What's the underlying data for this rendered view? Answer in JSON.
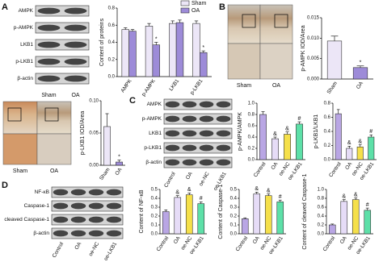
{
  "panel_labels": [
    "A",
    "B",
    "C",
    "D"
  ],
  "blots": [
    {
      "rows": [
        "AMPK",
        "p-AMPK",
        "LKB1",
        "p-LKB1",
        "β-actin"
      ],
      "columns": [
        "Sham",
        "OA"
      ]
    },
    {
      "rows": [
        "AMPK",
        "p-AMPK",
        "LKB1",
        "p-LKB1",
        "β-actin"
      ],
      "columns": [
        "Control",
        "OA",
        "oe-NC",
        "oe-LKB1"
      ]
    },
    {
      "rows": [
        "NF-κB",
        "Caspase-1",
        "cleaved Caspase-1",
        "β-actin"
      ],
      "columns": [
        "Control",
        "OA",
        "oe-NC",
        "oe-LKB1"
      ]
    }
  ],
  "images": [
    {
      "columns": [
        "Sham",
        "OA"
      ]
    },
    {
      "columns": [
        "Sham",
        "OA"
      ]
    }
  ],
  "chart_data": [
    {
      "type": "bar",
      "ylabel": "Content of proteins",
      "categories": [
        "AMPK",
        "p-AMPK",
        "LKB1",
        "p-LKB1"
      ],
      "series": [
        {
          "name": "Sham",
          "color": "#ece6f7",
          "values": [
            0.55,
            0.59,
            0.62,
            0.62
          ],
          "errors": [
            0.02,
            0.03,
            0.03,
            0.03
          ]
        },
        {
          "name": "OA",
          "color": "#9d8bd8",
          "values": [
            0.53,
            0.37,
            0.63,
            0.28
          ],
          "errors": [
            0.02,
            0.03,
            0.03,
            0.02
          ],
          "markers": [
            null,
            "*",
            null,
            "*"
          ]
        }
      ],
      "ylim": [
        0,
        0.8
      ],
      "yticks": [
        {
          "value": 0,
          "label": "0.0"
        },
        {
          "value": 0.2,
          "label": "0.2"
        },
        {
          "value": 0.4,
          "label": "0.4"
        },
        {
          "value": 0.6,
          "label": "0.6"
        },
        {
          "value": 0.8,
          "label": "0.8"
        }
      ],
      "legend": "upper right"
    },
    {
      "type": "bar",
      "ylabel": "p-AMPK IOD/Area",
      "categories": [
        "Sham",
        "OA"
      ],
      "colors": [
        "#ece6f7",
        "#9d8bd8"
      ],
      "values": [
        0.0093,
        0.0028
      ],
      "errors": [
        0.0012,
        0.0004
      ],
      "markers": [
        null,
        "*"
      ],
      "ylim": [
        0,
        0.015
      ],
      "yticks": [
        {
          "value": 0,
          "label": "0.000"
        },
        {
          "value": 0.005,
          "label": "0.005"
        },
        {
          "value": 0.01,
          "label": "0.010"
        },
        {
          "value": 0.015,
          "label": "0.015"
        }
      ]
    },
    {
      "type": "bar",
      "ylabel": "p-LKB1 IOD/Area",
      "categories": [
        "Sham",
        "OA"
      ],
      "colors": [
        "#ece6f7",
        "#9d8bd8"
      ],
      "values": [
        0.06,
        0.005
      ],
      "errors": [
        0.02,
        0.003
      ],
      "markers": [
        null,
        "*"
      ],
      "ylim": [
        0,
        0.1
      ],
      "yticks": [
        {
          "value": 0,
          "label": "0.00"
        },
        0.05,
        {
          "value": 0.1,
          "label": "0.10"
        }
      ]
    },
    {
      "type": "bar",
      "ylabel": "p-AMPK/AMPK",
      "categories": [
        "Control",
        "OA",
        "oe-NC",
        "oe-LKB1"
      ],
      "colors": [
        "#b9a6e4",
        "#e6dcf7",
        "#f5e04a",
        "#5de0a8"
      ],
      "values": [
        0.8,
        0.37,
        0.45,
        0.63
      ],
      "errors": [
        0.05,
        0.03,
        0.04,
        0.04
      ],
      "markers": [
        null,
        "&",
        "&",
        "#"
      ],
      "ylim": [
        0,
        1
      ],
      "yticks": [
        {
          "value": 0,
          "label": "0.0"
        },
        {
          "value": 0.2,
          "label": "0.2"
        },
        {
          "value": 0.4,
          "label": "0.4"
        },
        {
          "value": 0.6,
          "label": "0.6"
        },
        {
          "value": 0.8,
          "label": "0.8"
        },
        {
          "value": 1,
          "label": "1.0"
        }
      ]
    },
    {
      "type": "bar",
      "ylabel": "p-LKB1/LKB1",
      "categories": [
        "Control",
        "OA",
        "oe-NC",
        "oe-LKB1"
      ],
      "colors": [
        "#b9a6e4",
        "#e6dcf7",
        "#f5e04a",
        "#5de0a8"
      ],
      "values": [
        0.65,
        0.16,
        0.18,
        0.32
      ],
      "errors": [
        0.06,
        0.03,
        0.03,
        0.03
      ],
      "markers": [
        null,
        "&",
        "&",
        "#"
      ],
      "ylim": [
        0,
        0.8
      ],
      "yticks": [
        {
          "value": 0,
          "label": "0.0"
        },
        {
          "value": 0.2,
          "label": "0.2"
        },
        {
          "value": 0.4,
          "label": "0.4"
        },
        {
          "value": 0.6,
          "label": "0.6"
        },
        {
          "value": 0.8,
          "label": "0.8"
        }
      ]
    },
    {
      "type": "bar",
      "ylabel": "Content of NF-κB",
      "categories": [
        "Control",
        "OA",
        "oe-NC",
        "oe-LKB1"
      ],
      "colors": [
        "#b9a6e4",
        "#e6dcf7",
        "#f5e04a",
        "#5de0a8"
      ],
      "values": [
        0.25,
        0.41,
        0.44,
        0.34
      ],
      "errors": [
        0.02,
        0.02,
        0.02,
        0.02
      ],
      "markers": [
        null,
        "&",
        "&",
        "#"
      ],
      "ylim": [
        0,
        0.5
      ],
      "yticks": [
        {
          "value": 0,
          "label": "0.0"
        },
        0.1,
        0.2,
        0.3,
        0.4,
        0.5
      ]
    },
    {
      "type": "bar",
      "ylabel": "Content of Caspase-1",
      "categories": [
        "Control",
        "OA",
        "oe-NC",
        "oe-LKB1"
      ],
      "colors": [
        "#b9a6e4",
        "#e6dcf7",
        "#f5e04a",
        "#5de0a8"
      ],
      "values": [
        0.17,
        0.45,
        0.43,
        0.36
      ],
      "errors": [
        0.01,
        0.02,
        0.02,
        0.02
      ],
      "markers": [
        null,
        "&",
        "&",
        "#"
      ],
      "ylim": [
        0,
        0.5
      ],
      "yticks": [
        {
          "value": 0,
          "label": "0.0"
        },
        0.1,
        0.2,
        0.3,
        0.4,
        0.5
      ]
    },
    {
      "type": "bar",
      "ylabel": "Content of cleaved Caspase-1",
      "categories": [
        "Control",
        "OA",
        "oe-NC",
        "oe-LKB1"
      ],
      "colors": [
        "#b9a6e4",
        "#e6dcf7",
        "#f5e04a",
        "#5de0a8"
      ],
      "values": [
        0.2,
        0.73,
        0.77,
        0.53
      ],
      "errors": [
        0.02,
        0.04,
        0.04,
        0.05
      ],
      "markers": [
        null,
        "&",
        "&",
        "#"
      ],
      "ylim": [
        0,
        1
      ],
      "yticks": [
        {
          "value": 0,
          "label": "0.0"
        },
        {
          "value": 0.2,
          "label": "0.2"
        },
        {
          "value": 0.4,
          "label": "0.4"
        },
        {
          "value": 0.6,
          "label": "0.6"
        },
        {
          "value": 0.8,
          "label": "0.8"
        },
        {
          "value": 1,
          "label": "1.0"
        }
      ]
    }
  ]
}
